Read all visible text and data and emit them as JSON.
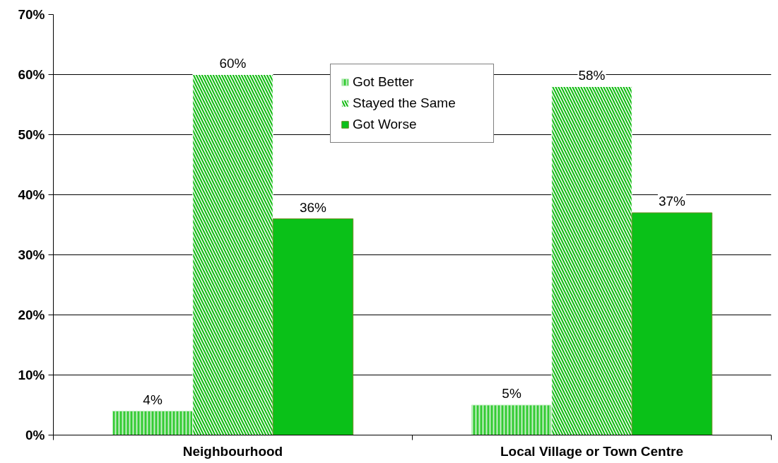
{
  "chart_data": {
    "type": "bar",
    "categories": [
      "Neighbourhood",
      "Local Village or Town Centre"
    ],
    "series": [
      {
        "name": "Got Better",
        "color": "#33cc33",
        "values": [
          4,
          5
        ],
        "value_labels": [
          "4%",
          "5%"
        ]
      },
      {
        "name": "Stayed the Same",
        "color": "#11bb11",
        "values": [
          60,
          58
        ],
        "value_labels": [
          "60%",
          "58%"
        ]
      },
      {
        "name": "Got Worse",
        "color": "#0ac118",
        "values": [
          36,
          37
        ],
        "value_labels": [
          "36%",
          "37%"
        ]
      }
    ],
    "ylim": [
      0,
      70
    ],
    "yticks": [
      {
        "value": 0,
        "label": "0%"
      },
      {
        "value": 10,
        "label": "10%"
      },
      {
        "value": 20,
        "label": "20%"
      },
      {
        "value": 30,
        "label": "30%"
      },
      {
        "value": 40,
        "label": "40%"
      },
      {
        "value": 50,
        "label": "50%"
      },
      {
        "value": 60,
        "label": "60%"
      },
      {
        "value": 70,
        "label": "70%"
      }
    ],
    "grid": "y",
    "legend": "top"
  }
}
